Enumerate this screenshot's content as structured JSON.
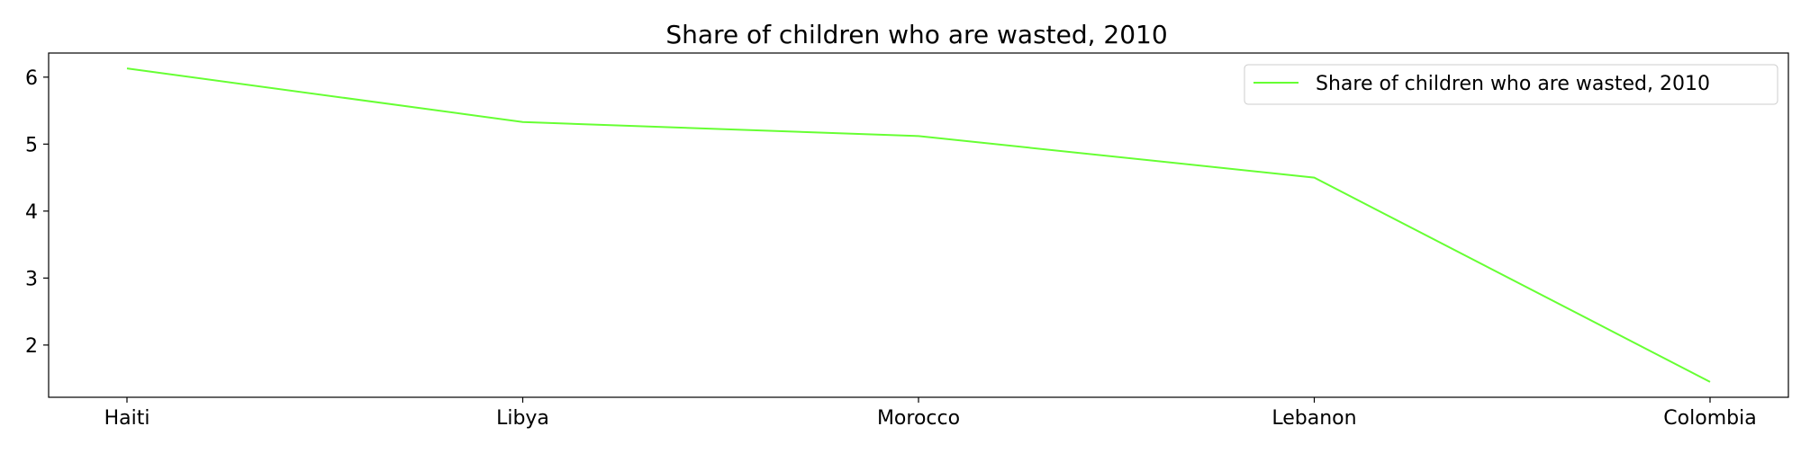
{
  "chart_data": {
    "type": "line",
    "title": "Share of children who are wasted, 2010",
    "xlabel": "",
    "ylabel": "",
    "categories": [
      "Haiti",
      "Libya",
      "Morocco",
      "Lebanon",
      "Colombia"
    ],
    "series": [
      {
        "name": "Share of children who are wasted, 2010",
        "values": [
          6.13,
          5.33,
          5.12,
          4.5,
          1.45
        ],
        "color": "#66ff33"
      }
    ],
    "ylim": [
      1.22,
      6.36
    ],
    "yticks": [
      2,
      3,
      4,
      5,
      6
    ],
    "grid": false,
    "legend_position": "top-right"
  }
}
